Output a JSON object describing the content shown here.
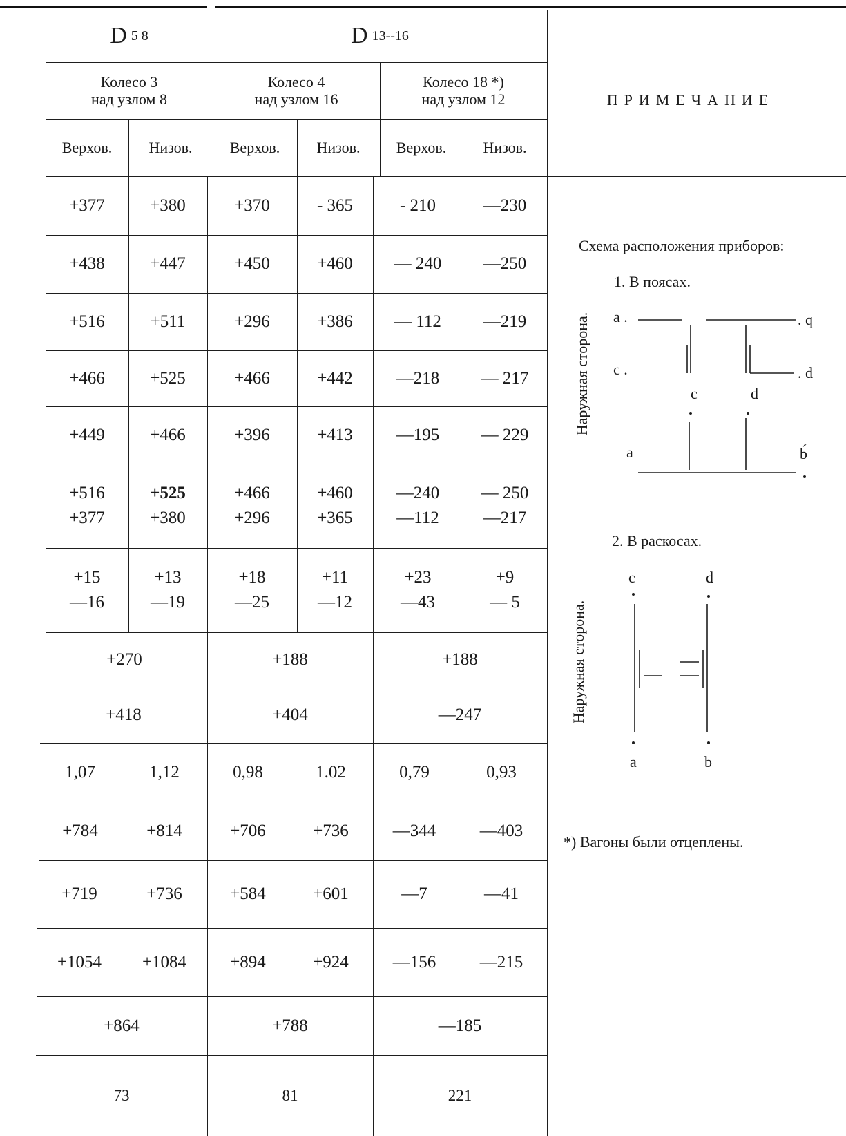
{
  "header": {
    "group1": {
      "main": "D",
      "sub": "5  8"
    },
    "group2": {
      "main": "D",
      "sub": "13--16"
    },
    "wheels": [
      {
        "line1": "Колесо 3",
        "line2": "над узлом 8"
      },
      {
        "line1": "Колесо 4",
        "line2": "над узлом 16"
      },
      {
        "line1": "Колесо 18 *)",
        "line2": "над узлом 12"
      }
    ],
    "sub_columns": [
      "Верхов.",
      "Низов.",
      "Верхов.",
      "Низов.",
      "Верхов.",
      "Низов."
    ]
  },
  "table": {
    "six_rows": [
      [
        "+377",
        "+380",
        "+370",
        "- 365",
        "- 210",
        "—230"
      ],
      [
        "+438",
        "+447",
        "+450",
        "+460",
        "— 240",
        "—250"
      ],
      [
        "+516",
        "+511",
        "+296",
        "+386",
        "— 112",
        "—219"
      ],
      [
        "+466",
        "+525",
        "+466",
        "+442",
        "—218",
        "— 217"
      ],
      [
        "+449",
        "+466",
        "+396",
        "+413",
        "—195",
        "— 229"
      ]
    ],
    "pair_row_a": [
      [
        "+516",
        "+377"
      ],
      [
        "+525",
        "+380"
      ],
      [
        "+466",
        "+296"
      ],
      [
        "+460",
        "+365"
      ],
      [
        "—240",
        "—112"
      ],
      [
        "— 250",
        "—217"
      ]
    ],
    "pair_row_b": [
      [
        "+15",
        "—16"
      ],
      [
        "+13",
        "—19"
      ],
      [
        "+18",
        "—25"
      ],
      [
        "+11",
        "—12"
      ],
      [
        "+23",
        "—43"
      ],
      [
        "+9",
        "— 5"
      ]
    ],
    "three_rows_a": [
      [
        "+270",
        "+188",
        "+188"
      ],
      [
        "+418",
        "+404",
        "—247"
      ]
    ],
    "six_rows_b": [
      [
        "1,07",
        "1,12",
        "0,98",
        "1.02",
        "0,79",
        "0,93"
      ],
      [
        "+784",
        "+814",
        "+706",
        "+736",
        "—344",
        "—403"
      ],
      [
        "+719",
        "+736",
        "+584",
        "+601",
        "—7",
        "—41"
      ],
      [
        "+1054",
        "+1084",
        "+894",
        "+924",
        "—156",
        "—215"
      ]
    ],
    "three_rows_b": [
      [
        "+864",
        "+788",
        "—185"
      ],
      [
        "73",
        "81",
        "221"
      ]
    ]
  },
  "notes": {
    "heading": "ПРИМЕЧАНИЕ",
    "schema_title": "Схема расположения приборов:",
    "section1": "1.  В поясах.",
    "section2": "2.  В раскосах.",
    "side_label": "Наружная сторона.",
    "labels1": {
      "a_top": "a .",
      "q": ". q",
      "c_left": "c .",
      "d_right": ". d",
      "c_mid": "c",
      "d_mid": "d",
      "a_bottom": "a",
      "b_bottom": "b́"
    },
    "labels2": {
      "c": "c",
      "d": "d",
      "a": "a",
      "b": "b"
    },
    "footnote": "*) Вагоны были отцеплены."
  }
}
